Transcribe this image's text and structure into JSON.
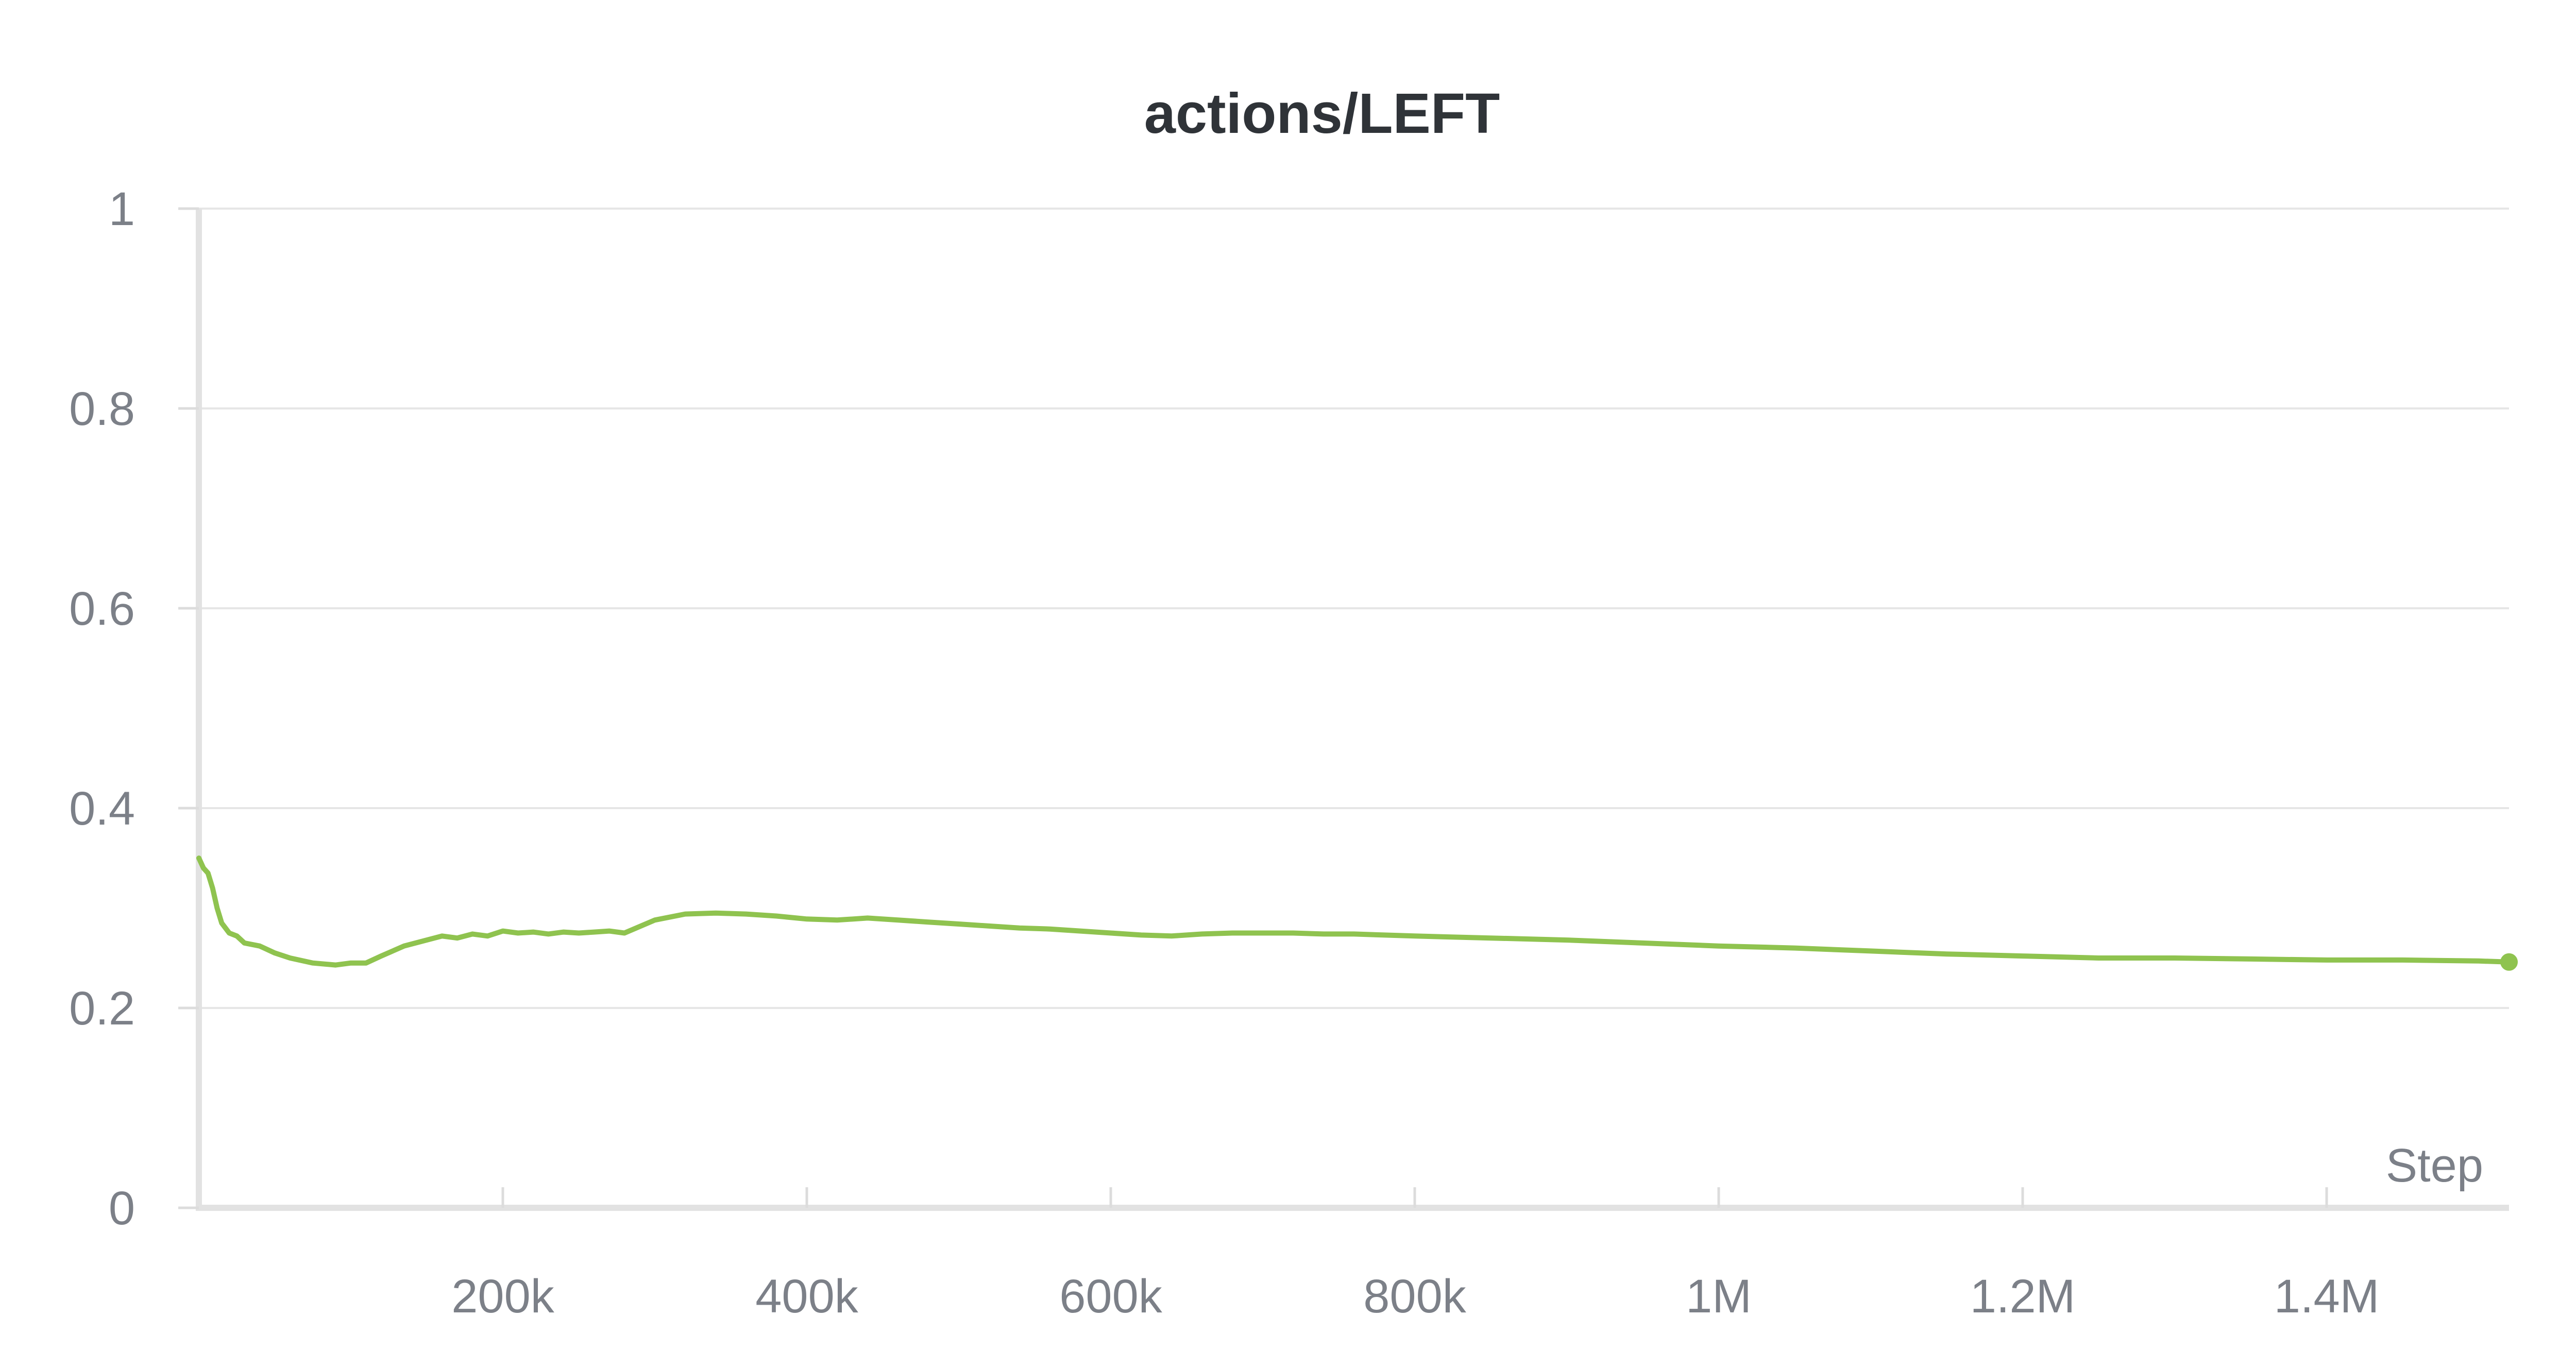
{
  "chart_data": {
    "type": "line",
    "title": "actions/LEFT",
    "xlabel": "Step",
    "ylabel": "",
    "xlim": [
      0,
      1520000
    ],
    "ylim": [
      0,
      1
    ],
    "x_ticks": [
      {
        "value": 200000,
        "label": "200k"
      },
      {
        "value": 400000,
        "label": "400k"
      },
      {
        "value": 600000,
        "label": "600k"
      },
      {
        "value": 800000,
        "label": "800k"
      },
      {
        "value": 1000000,
        "label": "1M"
      },
      {
        "value": 1200000,
        "label": "1.2M"
      },
      {
        "value": 1400000,
        "label": "1.4M"
      }
    ],
    "y_ticks": [
      {
        "value": 0,
        "label": "0"
      },
      {
        "value": 0.2,
        "label": "0.2"
      },
      {
        "value": 0.4,
        "label": "0.4"
      },
      {
        "value": 0.6,
        "label": "0.6"
      },
      {
        "value": 0.8,
        "label": "0.8"
      },
      {
        "value": 1,
        "label": "1"
      }
    ],
    "grid": true,
    "legend": "none",
    "series": [
      {
        "color": "#8fc34f",
        "x": [
          0,
          3000,
          6000,
          9000,
          12000,
          15000,
          20000,
          25000,
          30000,
          40000,
          50000,
          60000,
          75000,
          90000,
          100000,
          110000,
          120000,
          135000,
          150000,
          160000,
          170000,
          180000,
          190000,
          200000,
          210000,
          220000,
          230000,
          240000,
          250000,
          260000,
          270000,
          280000,
          300000,
          320000,
          340000,
          360000,
          380000,
          400000,
          420000,
          440000,
          460000,
          480000,
          500000,
          520000,
          540000,
          560000,
          580000,
          600000,
          620000,
          640000,
          660000,
          680000,
          700000,
          720000,
          740000,
          760000,
          780000,
          800000,
          850000,
          900000,
          950000,
          1000000,
          1050000,
          1100000,
          1150000,
          1200000,
          1250000,
          1300000,
          1350000,
          1400000,
          1450000,
          1500000,
          1520000
        ],
        "y": [
          0.35,
          0.34,
          0.335,
          0.32,
          0.3,
          0.285,
          0.275,
          0.272,
          0.265,
          0.262,
          0.255,
          0.25,
          0.245,
          0.243,
          0.245,
          0.245,
          0.252,
          0.262,
          0.268,
          0.272,
          0.27,
          0.274,
          0.272,
          0.277,
          0.275,
          0.276,
          0.274,
          0.276,
          0.275,
          0.276,
          0.277,
          0.275,
          0.288,
          0.294,
          0.295,
          0.294,
          0.292,
          0.289,
          0.288,
          0.29,
          0.288,
          0.286,
          0.284,
          0.282,
          0.28,
          0.279,
          0.277,
          0.275,
          0.273,
          0.272,
          0.274,
          0.275,
          0.275,
          0.275,
          0.274,
          0.274,
          0.273,
          0.272,
          0.27,
          0.268,
          0.265,
          0.262,
          0.26,
          0.257,
          0.254,
          0.252,
          0.25,
          0.25,
          0.249,
          0.248,
          0.248,
          0.247,
          0.246
        ]
      }
    ]
  }
}
